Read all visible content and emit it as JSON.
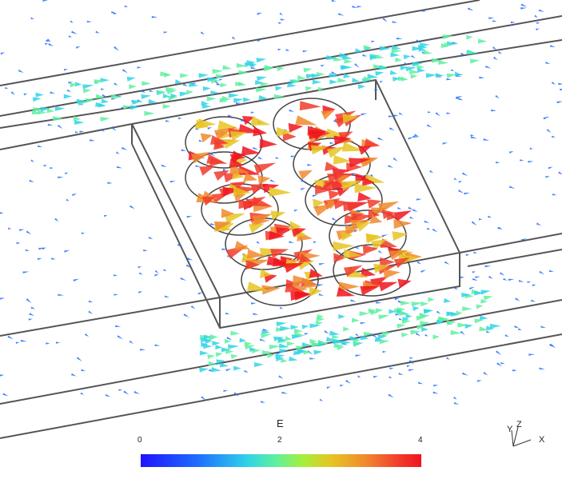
{
  "legend": {
    "title": "E",
    "ticks": [
      "0",
      "2",
      "4"
    ],
    "colors": [
      "#1f12ff",
      "#1e6cff",
      "#2fd3e8",
      "#5ef0a0",
      "#a6ef3a",
      "#e7c423",
      "#f08a2e",
      "#f13b2b",
      "#f0141e"
    ]
  },
  "axes_triad": {
    "y": "Y",
    "z": "Z",
    "x": "X"
  }
}
